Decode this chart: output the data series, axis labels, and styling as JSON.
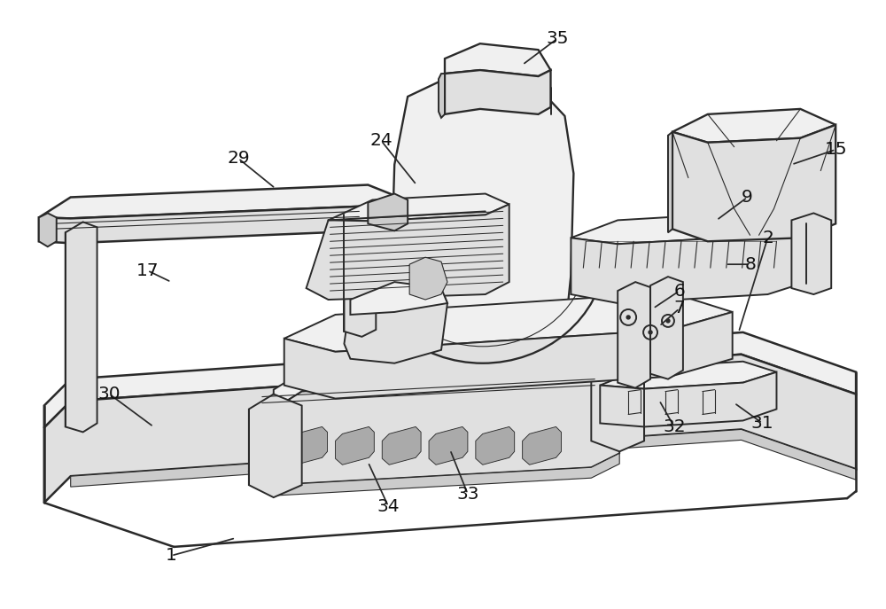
{
  "bg_color": "#ffffff",
  "line_color": "#2a2a2a",
  "lw_main": 1.4,
  "lw_thin": 0.8,
  "fill_light": "#f0f0f0",
  "fill_mid": "#e0e0e0",
  "fill_dark": "#cccccc",
  "fill_white": "#ffffff",
  "figsize": [
    10.0,
    6.87
  ],
  "dpi": 100,
  "annotations": [
    [
      "35",
      630,
      42,
      590,
      72
    ],
    [
      "24",
      430,
      158,
      470,
      208
    ],
    [
      "29",
      268,
      178,
      310,
      212
    ],
    [
      "15",
      945,
      168,
      895,
      185
    ],
    [
      "9",
      845,
      222,
      810,
      248
    ],
    [
      "8",
      848,
      298,
      820,
      298
    ],
    [
      "17",
      165,
      305,
      192,
      318
    ],
    [
      "6",
      768,
      328,
      738,
      348
    ],
    [
      "7",
      768,
      348,
      745,
      368
    ],
    [
      "2",
      868,
      268,
      835,
      375
    ],
    [
      "31",
      862,
      478,
      830,
      455
    ],
    [
      "32",
      762,
      482,
      745,
      452
    ],
    [
      "33",
      528,
      558,
      508,
      508
    ],
    [
      "34",
      438,
      572,
      415,
      522
    ],
    [
      "30",
      122,
      445,
      172,
      482
    ],
    [
      "1",
      192,
      628,
      265,
      608
    ]
  ]
}
